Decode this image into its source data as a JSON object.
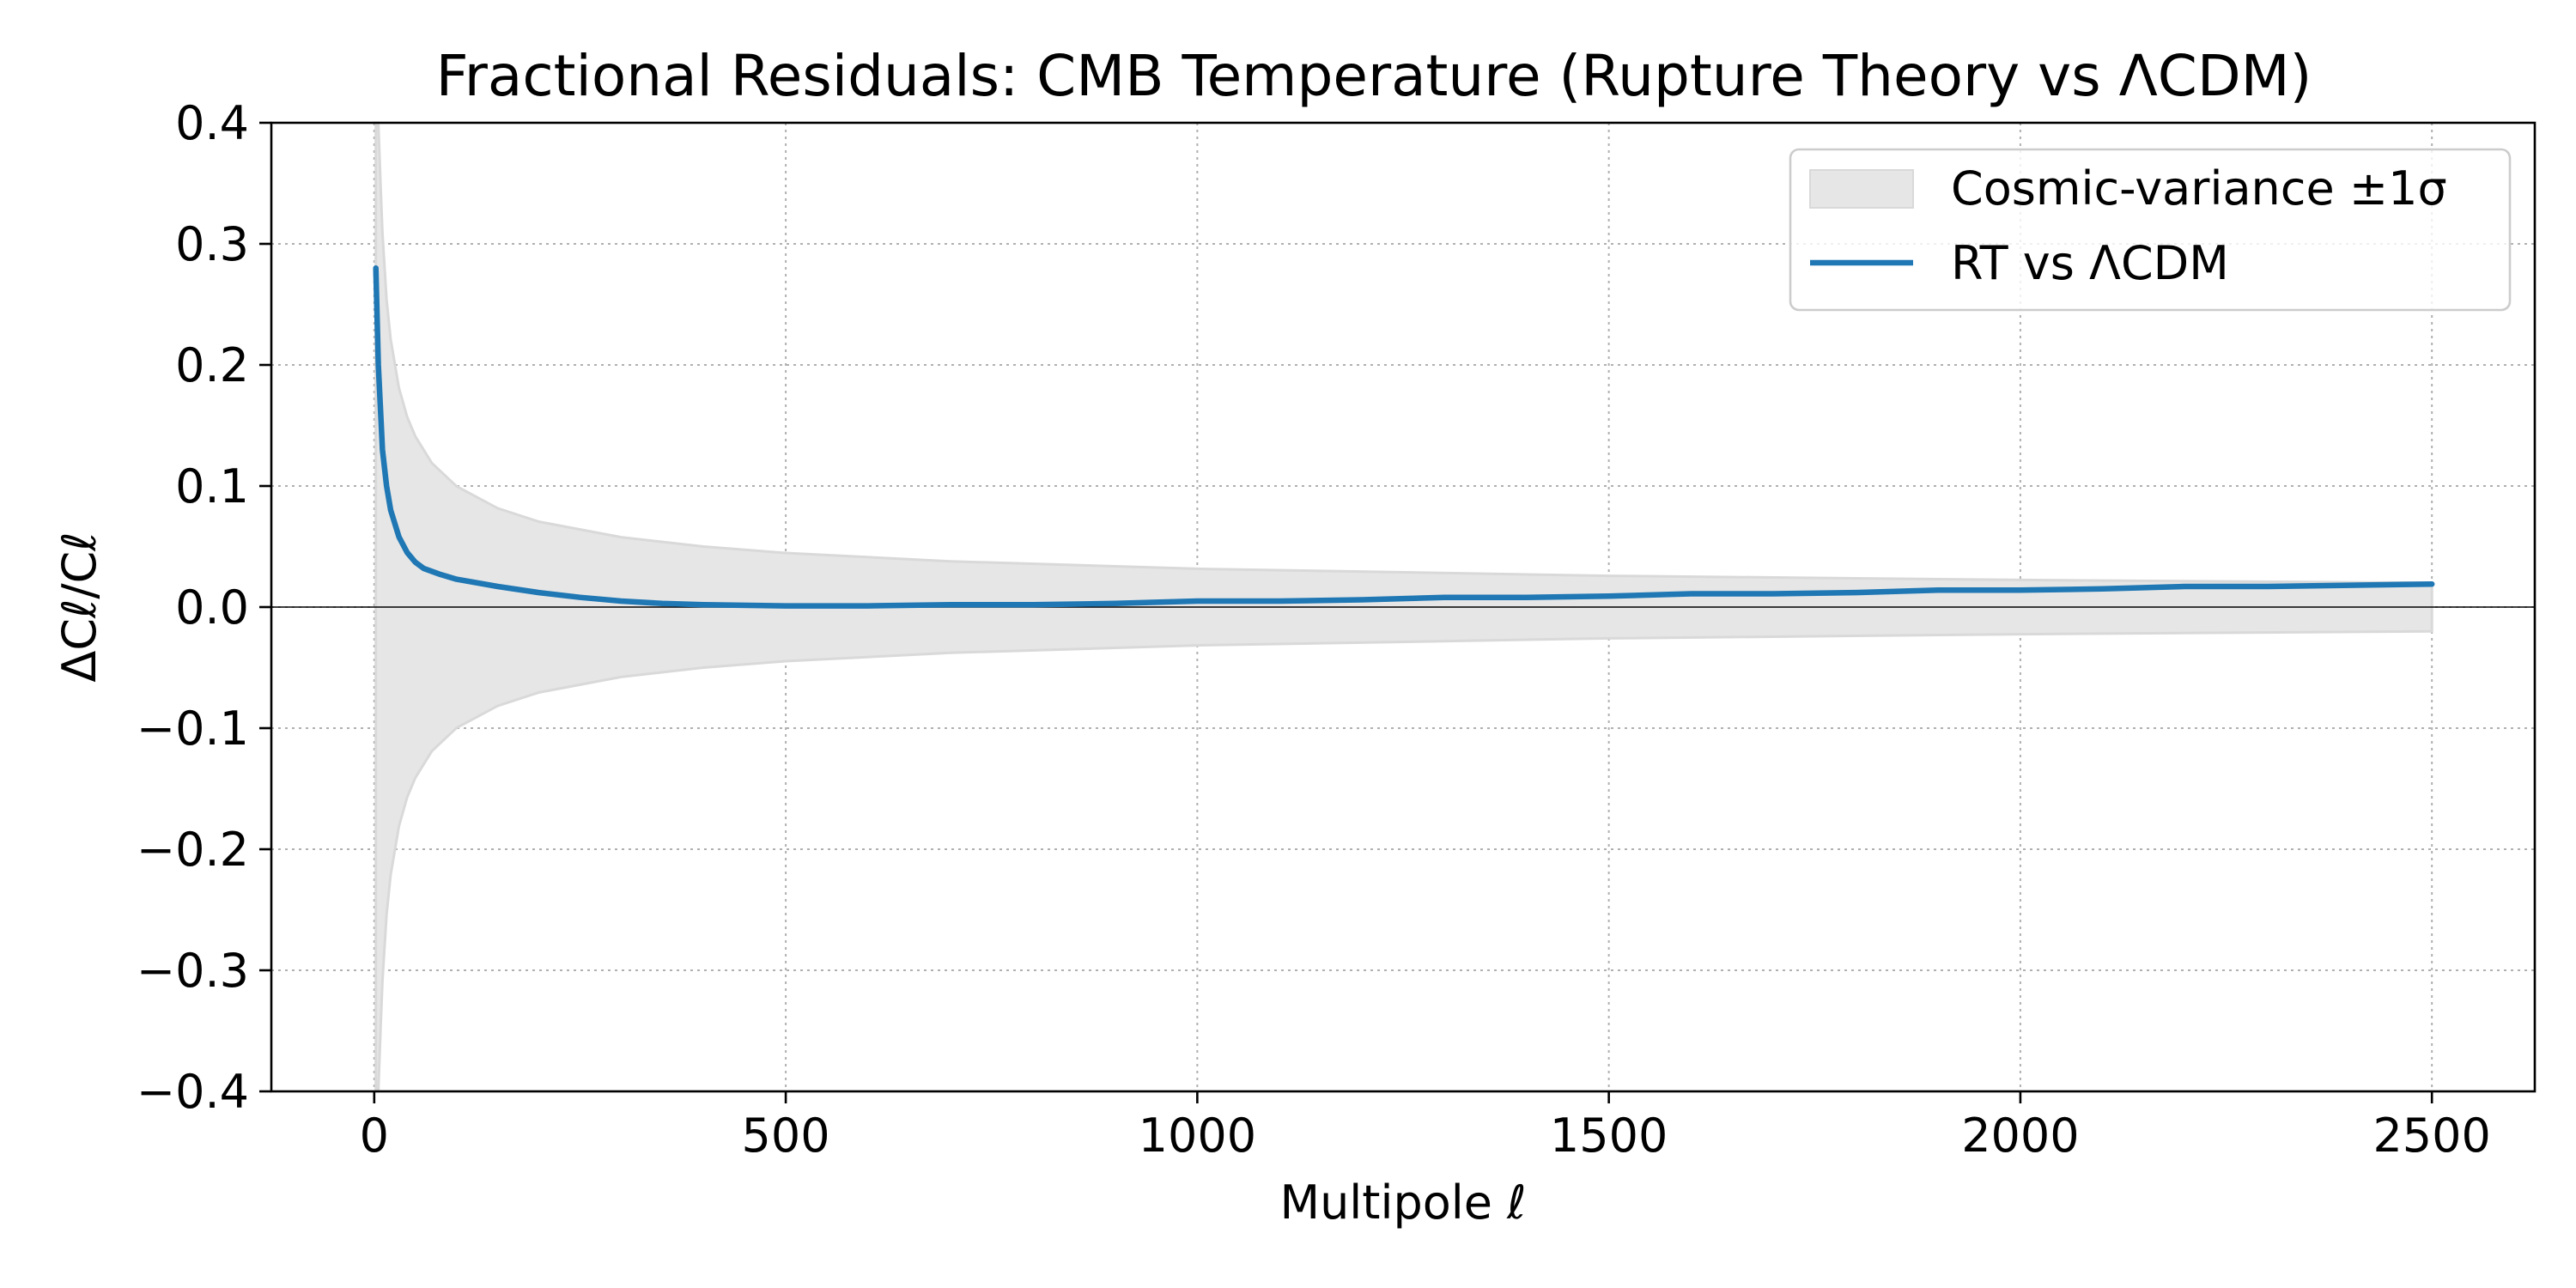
{
  "chart_data": {
    "type": "line",
    "title": "Fractional Residuals: CMB Temperature (Rupture Theory vs ΛCDM)",
    "xlabel": "Multipole ℓ",
    "ylabel": "ΔCℓ/Cℓ",
    "xlim": [
      -125,
      2625
    ],
    "ylim": [
      -0.4,
      0.4
    ],
    "xticks": [
      0,
      500,
      1000,
      1500,
      2000,
      2500
    ],
    "xtick_labels": [
      "0",
      "500",
      "1000",
      "1500",
      "2000",
      "2500"
    ],
    "yticks": [
      -0.4,
      -0.3,
      -0.2,
      -0.1,
      0.0,
      0.1,
      0.2,
      0.3,
      0.4
    ],
    "ytick_labels": [
      "−0.4",
      "−0.3",
      "−0.2",
      "−0.1",
      "0.0",
      "0.1",
      "0.2",
      "0.3",
      "0.4"
    ],
    "grid": true,
    "zero_line": true,
    "legend_position": "upper right",
    "series": [
      {
        "name": "RT vs ΛCDM",
        "kind": "line",
        "color": "#1f77b4",
        "x": [
          2,
          5,
          10,
          15,
          20,
          30,
          40,
          50,
          60,
          80,
          100,
          150,
          200,
          250,
          300,
          350,
          400,
          500,
          600,
          700,
          800,
          900,
          1000,
          1100,
          1200,
          1300,
          1400,
          1500,
          1600,
          1700,
          1800,
          1900,
          2000,
          2100,
          2200,
          2300,
          2400,
          2500
        ],
        "y": [
          0.28,
          0.2,
          0.13,
          0.1,
          0.08,
          0.058,
          0.045,
          0.037,
          0.032,
          0.027,
          0.023,
          0.017,
          0.012,
          0.008,
          0.005,
          0.003,
          0.002,
          0.001,
          0.001,
          0.002,
          0.002,
          0.003,
          0.005,
          0.005,
          0.006,
          0.008,
          0.008,
          0.009,
          0.011,
          0.011,
          0.012,
          0.014,
          0.014,
          0.015,
          0.017,
          0.017,
          0.018,
          0.019
        ]
      },
      {
        "name": "Cosmic-variance ±1σ",
        "kind": "band",
        "color": "#e6e6e6",
        "edge_color": "#d9d9d9",
        "formula": "sqrt(2/(2l+1))",
        "x": [
          2,
          3,
          5,
          8,
          10,
          15,
          20,
          30,
          40,
          50,
          70,
          100,
          150,
          200,
          300,
          400,
          500,
          700,
          1000,
          1500,
          2000,
          2500
        ],
        "upper": [
          0.632,
          0.535,
          0.426,
          0.343,
          0.309,
          0.254,
          0.221,
          0.181,
          0.157,
          0.141,
          0.119,
          0.0998,
          0.0816,
          0.0706,
          0.0577,
          0.05,
          0.0447,
          0.0378,
          0.0316,
          0.0258,
          0.0224,
          0.02
        ]
      }
    ]
  }
}
